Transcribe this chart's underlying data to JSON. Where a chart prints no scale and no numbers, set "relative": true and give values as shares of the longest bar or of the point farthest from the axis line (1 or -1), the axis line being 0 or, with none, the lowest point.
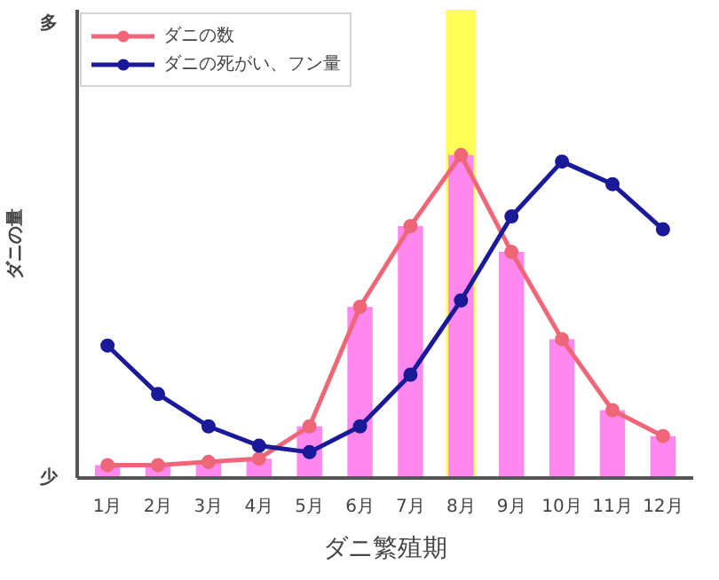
{
  "chart_data": {
    "type": "line",
    "relative": true,
    "ylabel": "ダニの量",
    "categories": [
      "1月",
      "2月",
      "3月",
      "4月",
      "5月",
      "6月",
      "7月",
      "8月",
      "9月",
      "10月",
      "11月",
      "12月"
    ],
    "series": [
      {
        "type": "bar",
        "color": "#ff88ee",
        "values": [
          0.04,
          0.04,
          0.05,
          0.06,
          0.16,
          0.53,
          0.78,
          1,
          0.7,
          0.43,
          0.21,
          0.13
        ]
      },
      {
        "name": "ダニの数",
        "color": "#ee6677",
        "values": [
          0.04,
          0.04,
          0.05,
          0.06,
          0.16,
          0.53,
          0.78,
          1,
          0.7,
          0.43,
          0.21,
          0.13
        ]
      },
      {
        "name": "ダニの死がい、フン量",
        "color": "#1a1a99",
        "values": [
          0.41,
          0.26,
          0.16,
          0.1,
          0.08,
          0.16,
          0.32,
          0.55,
          0.81,
          0.98,
          0.91,
          0.77
        ]
      }
    ],
    "bands": [
      {
        "axis": "x",
        "from": "8月",
        "to": "8月",
        "color": "#ffff44"
      }
    ],
    "annotations": [
      "多",
      "少",
      "ダニ繁殖期"
    ],
    "marker": "circle",
    "legend": "top",
    "grid": false
  }
}
